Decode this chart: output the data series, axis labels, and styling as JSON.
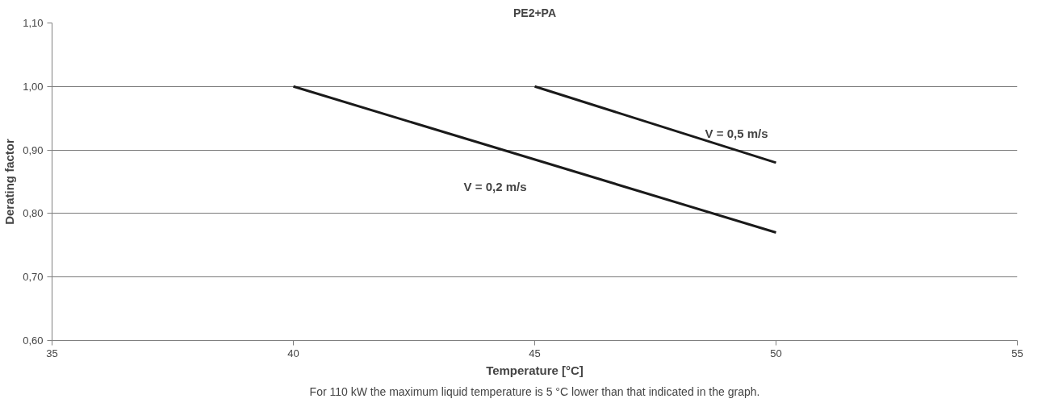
{
  "chart_data": {
    "type": "line",
    "title": "PE2+PA",
    "xlabel": "Temperature [°C]",
    "ylabel": "Derating factor",
    "series": [
      {
        "name": "V = 0,2 m/s",
        "color": "#1a1a1a",
        "x": [
          40,
          50
        ],
        "values": [
          1.0,
          0.77
        ]
      },
      {
        "name": "V = 0,5 m/s",
        "color": "#1a1a1a",
        "x": [
          45,
          50
        ],
        "values": [
          1.0,
          0.88
        ]
      }
    ],
    "xlim": [
      35,
      55
    ],
    "xticks": [
      35,
      40,
      45,
      50,
      55
    ],
    "ylim": [
      0.6,
      1.1
    ],
    "yticks": [
      {
        "value": 0.6,
        "label": "0,60"
      },
      {
        "value": 0.7,
        "label": "0,70"
      },
      {
        "value": 0.8,
        "label": "0,80"
      },
      {
        "value": 0.9,
        "label": "0,90"
      },
      {
        "value": 1.0,
        "label": "1,00"
      },
      {
        "value": 1.1,
        "label": "1,10"
      }
    ],
    "grid": "y",
    "legend": false,
    "marker": "none",
    "line_style": "solid",
    "annotations": [
      "For 110 kW the maximum liquid temperature is 5 °C lower than that indicated in the graph."
    ]
  }
}
